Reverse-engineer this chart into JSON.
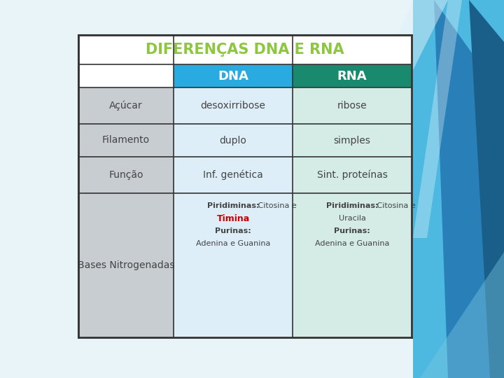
{
  "title": "DIFERENÇAS DNA E RNA",
  "title_color": "#8dc63f",
  "title_fontsize": 15,
  "header_row": [
    "DNA",
    "RNA"
  ],
  "header_dna_color": "#29abe2",
  "header_rna_color": "#1a8a6e",
  "header_text_color": "#ffffff",
  "header_fontsize": 13,
  "rows": [
    {
      "label": "Açúcar",
      "dna": "desoxirribose",
      "rna": "ribose"
    },
    {
      "label": "Filamento",
      "dna": "duplo",
      "rna": "simples"
    },
    {
      "label": "Função",
      "dna": "Inf. genética",
      "rna": "Sint. proteínas"
    },
    {
      "label": "Bases Nitrogenadas",
      "dna": "bases_dna",
      "rna": "bases_rna"
    }
  ],
  "label_col_color": "#c8cdd1",
  "dna_col_color": "#ddeef8",
  "rna_col_color": "#d5ece6",
  "cell_text_color": "#444444",
  "cell_fontsize": 10,
  "label_fontsize": 10,
  "outer_bg": "#ffffff",
  "border_color": "#333333",
  "bg_top_color": "#e8f4f8",
  "bg_bottom_color": "#cbe8f2",
  "deco_light_blue": "#4db8e0",
  "deco_mid_blue": "#2980b9",
  "deco_dark_blue": "#1a5f8a",
  "deco_white": "#dff0f8"
}
